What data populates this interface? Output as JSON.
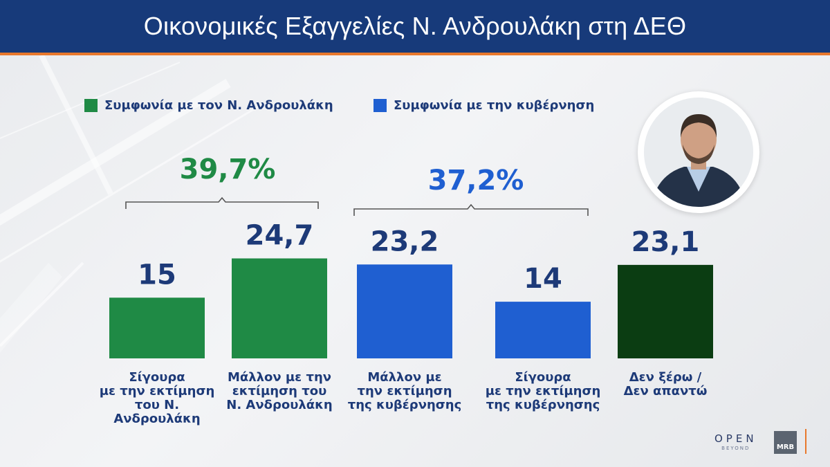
{
  "header": {
    "title": "Οικονομικές Εξαγγελίες Ν. Ανδρουλάκη στη ΔΕΘ"
  },
  "legend": [
    {
      "label": "Συμφωνία με τον Ν. Ανδρουλάκη",
      "color": "#1f8a45"
    },
    {
      "label": "Συμφωνία με την κυβέρνηση",
      "color": "#1f5fd1"
    }
  ],
  "groups": [
    {
      "total": "39,7%",
      "color": "#1f8a45"
    },
    {
      "total": "37,2%",
      "color": "#1f5fd1"
    }
  ],
  "chart_data": {
    "type": "bar",
    "categories": [
      "Σίγουρα\nμε την εκτίμηση\nτου Ν.\nΑνδρουλάκη",
      "Μάλλον με την\nεκτίμηση του\nΝ. Ανδρουλάκη",
      "Μάλλον με\nτην εκτίμηση\nτης κυβέρνησης",
      "Σίγουρα\nμε την εκτίμηση\nτης κυβέρνησης",
      "Δεν ξέρω /\nΔεν απαντώ"
    ],
    "values": [
      15,
      24.7,
      23.2,
      14,
      23.1
    ],
    "value_labels": [
      "15",
      "24,7",
      "23,2",
      "14",
      "23,1"
    ],
    "colors": [
      "#1f8a45",
      "#1f8a45",
      "#1f5fd1",
      "#1f5fd1",
      "#0b3d12"
    ],
    "ylim": [
      0,
      30
    ]
  },
  "logos": {
    "open": "OPEN",
    "open_sub": "BEYOND",
    "mrb": "MRB"
  }
}
